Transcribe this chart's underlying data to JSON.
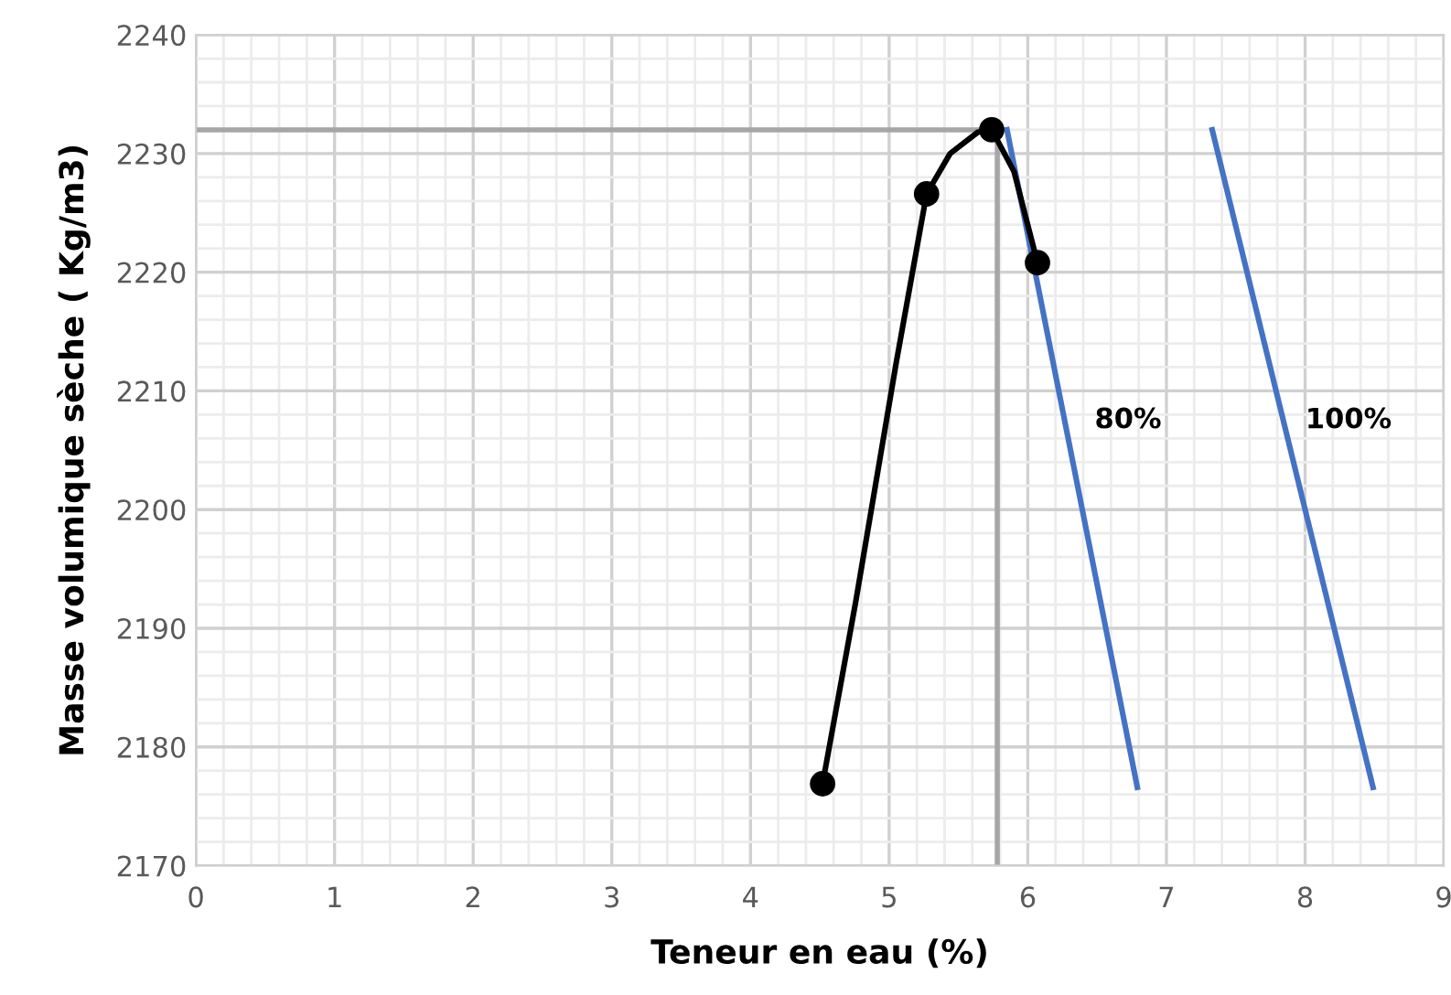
{
  "chart_data": {
    "type": "line",
    "xlabel": "Teneur en eau (%)",
    "ylabel": "Masse volumique sèche ( Kg/m3)",
    "xlim": [
      0,
      9
    ],
    "xticks": [
      0,
      1,
      2,
      3,
      4,
      5,
      6,
      7,
      8,
      9
    ],
    "ylim": [
      2170,
      2240
    ],
    "yticks": [
      2170,
      2180,
      2190,
      2200,
      2210,
      2220,
      2230,
      2240
    ],
    "grid": true,
    "series": [
      {
        "color": "#000000",
        "x": [
          4.52,
          4.76,
          5.05,
          5.27,
          5.44,
          5.64,
          5.74,
          5.9,
          6.07
        ],
        "values": [
          2176.9,
          2192.3,
          2212.3,
          2226.6,
          2230.0,
          2231.8,
          2232.0,
          2228.5,
          2220.8
        ],
        "marker": "none"
      },
      {
        "type": "scatter",
        "color": "#000000",
        "x": [
          4.52,
          5.27,
          5.74,
          6.07
        ],
        "values": [
          2176.9,
          2226.6,
          2232.0,
          2220.8
        ],
        "marker": "circle"
      },
      {
        "color": "#a6a6a6",
        "x": [
          0,
          5.74
        ],
        "values": [
          2232.0,
          2232.0
        ],
        "marker": "none"
      },
      {
        "color": "#a6a6a6",
        "x": [
          5.78,
          5.78
        ],
        "values": [
          2232.0,
          2170
        ],
        "marker": "none"
      },
      {
        "name": "80%",
        "color": "#4472c4",
        "x": [
          5.85,
          6.79
        ],
        "values": [
          2232.0,
          2176.6
        ],
        "marker": "none"
      },
      {
        "name": "100%",
        "color": "#4472c4",
        "x": [
          7.33,
          8.49
        ],
        "values": [
          2232.0,
          2176.6
        ],
        "marker": "none"
      }
    ]
  }
}
